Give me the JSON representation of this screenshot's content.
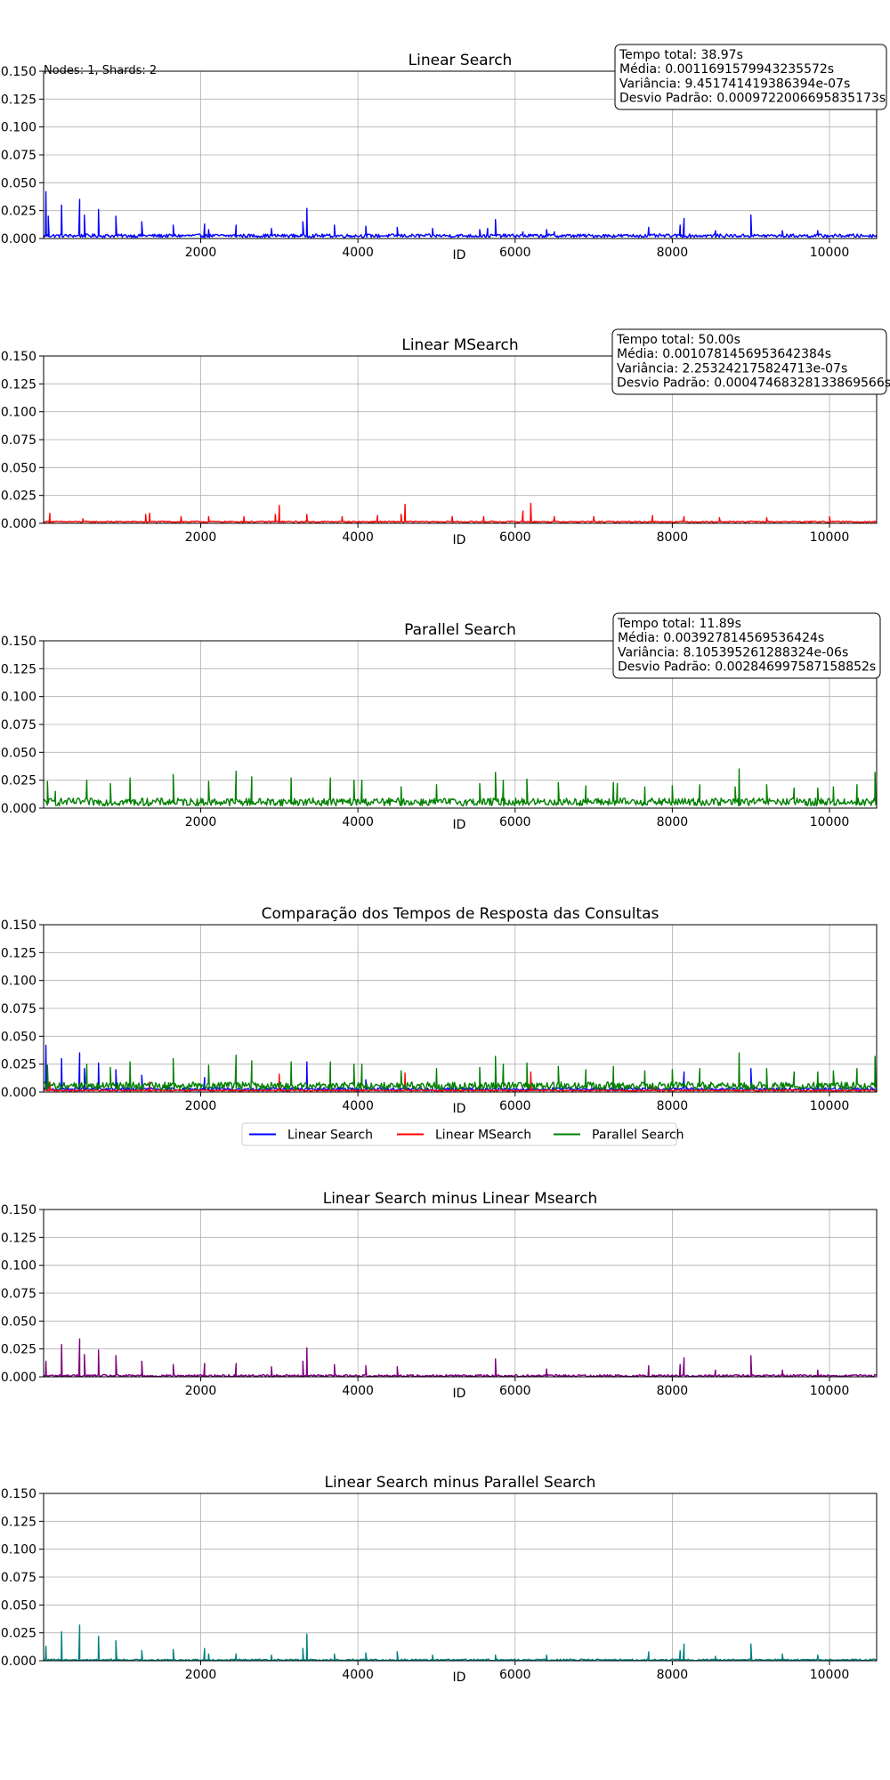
{
  "figure_note": "Nodes: 1, Shards: 2",
  "chart_data": [
    {
      "type": "line",
      "title": "Linear Search",
      "xlabel": "ID",
      "ylabel": "",
      "xlim": [
        1,
        10600
      ],
      "ylim": [
        0,
        0.15
      ],
      "xticks": [
        2000,
        4000,
        6000,
        8000,
        10000
      ],
      "yticks": [
        0.0,
        0.025,
        0.05,
        0.075,
        0.1,
        0.125,
        0.15
      ],
      "ytick_labels": [
        "0.000",
        "0.025",
        "0.050",
        "0.075",
        "0.100",
        "0.125",
        "0.150"
      ],
      "grid": true,
      "series": [
        {
          "color": "#0000ff",
          "baseline": [
            0.001,
            0.004
          ],
          "spikes": [
            [
              30,
              0.042
            ],
            [
              60,
              0.02
            ],
            [
              230,
              0.03
            ],
            [
              460,
              0.035
            ],
            [
              520,
              0.021
            ],
            [
              700,
              0.026
            ],
            [
              920,
              0.02
            ],
            [
              1250,
              0.015
            ],
            [
              1650,
              0.012
            ],
            [
              2050,
              0.013
            ],
            [
              2100,
              0.008
            ],
            [
              2450,
              0.012
            ],
            [
              2900,
              0.009
            ],
            [
              3300,
              0.015
            ],
            [
              3350,
              0.027
            ],
            [
              3700,
              0.012
            ],
            [
              4100,
              0.011
            ],
            [
              4500,
              0.01
            ],
            [
              4950,
              0.009
            ],
            [
              5550,
              0.008
            ],
            [
              5650,
              0.009
            ],
            [
              5750,
              0.017
            ],
            [
              6100,
              0.006
            ],
            [
              6400,
              0.008
            ],
            [
              6500,
              0.006
            ],
            [
              7700,
              0.01
            ],
            [
              8100,
              0.012
            ],
            [
              8150,
              0.018
            ],
            [
              8550,
              0.007
            ],
            [
              9000,
              0.021
            ],
            [
              9400,
              0.007
            ],
            [
              9850,
              0.007
            ],
            [
              10300,
              0.004
            ]
          ]
        }
      ],
      "stats": [
        "Tempo total: 38.97s",
        "Média: 0.0011691579943235572s",
        "Variância: 9.451741419386394e-07s",
        "Desvio Padrão: 0.0009722006695835173s"
      ]
    },
    {
      "type": "line",
      "title": "Linear MSearch",
      "xlabel": "ID",
      "ylabel": "",
      "xlim": [
        1,
        10600
      ],
      "ylim": [
        0,
        0.15
      ],
      "xticks": [
        2000,
        4000,
        6000,
        8000,
        10000
      ],
      "yticks": [
        0.0,
        0.025,
        0.05,
        0.075,
        0.1,
        0.125,
        0.15
      ],
      "ytick_labels": [
        "0.000",
        "0.025",
        "0.050",
        "0.075",
        "0.100",
        "0.125",
        "0.150"
      ],
      "grid": true,
      "series": [
        {
          "color": "#ff0000",
          "baseline": [
            0.0008,
            0.002
          ],
          "spikes": [
            [
              80,
              0.009
            ],
            [
              500,
              0.004
            ],
            [
              1300,
              0.008
            ],
            [
              1350,
              0.009
            ],
            [
              1750,
              0.006
            ],
            [
              2100,
              0.006
            ],
            [
              2550,
              0.006
            ],
            [
              2950,
              0.008
            ],
            [
              3000,
              0.016
            ],
            [
              3350,
              0.008
            ],
            [
              3800,
              0.006
            ],
            [
              4250,
              0.007
            ],
            [
              4550,
              0.008
            ],
            [
              4600,
              0.017
            ],
            [
              5200,
              0.006
            ],
            [
              5600,
              0.006
            ],
            [
              6100,
              0.011
            ],
            [
              6200,
              0.018
            ],
            [
              6500,
              0.006
            ],
            [
              7000,
              0.006
            ],
            [
              7750,
              0.007
            ],
            [
              8150,
              0.006
            ],
            [
              8600,
              0.005
            ],
            [
              9200,
              0.005
            ],
            [
              10000,
              0.006
            ]
          ]
        }
      ],
      "stats": [
        "Tempo total: 50.00s",
        "Média: 0.0010781456953642384s",
        "Variância: 2.253242175824713e-07s",
        "Desvio Padrão: 0.0004746832813386956​6s"
      ]
    },
    {
      "type": "line",
      "title": "Parallel Search",
      "xlabel": "ID",
      "ylabel": "",
      "xlim": [
        1,
        10600
      ],
      "ylim": [
        0,
        0.15
      ],
      "xticks": [
        2000,
        4000,
        6000,
        8000,
        10000
      ],
      "yticks": [
        0.0,
        0.025,
        0.05,
        0.075,
        0.1,
        0.125,
        0.15
      ],
      "ytick_labels": [
        "0.000",
        "0.025",
        "0.050",
        "0.075",
        "0.100",
        "0.125",
        "0.150"
      ],
      "grid": true,
      "series": [
        {
          "color": "#008000",
          "baseline": [
            0.002,
            0.009
          ],
          "spikes": [
            [
              50,
              0.024
            ],
            [
              150,
              0.015
            ],
            [
              550,
              0.025
            ],
            [
              850,
              0.022
            ],
            [
              1100,
              0.027
            ],
            [
              1650,
              0.03
            ],
            [
              2100,
              0.024
            ],
            [
              2450,
              0.033
            ],
            [
              2650,
              0.028
            ],
            [
              3150,
              0.027
            ],
            [
              3650,
              0.027
            ],
            [
              3950,
              0.025
            ],
            [
              4050,
              0.025
            ],
            [
              4550,
              0.019
            ],
            [
              5000,
              0.021
            ],
            [
              5550,
              0.022
            ],
            [
              5750,
              0.032
            ],
            [
              5850,
              0.025
            ],
            [
              6150,
              0.026
            ],
            [
              6550,
              0.023
            ],
            [
              6900,
              0.02
            ],
            [
              7250,
              0.023
            ],
            [
              7300,
              0.022
            ],
            [
              7650,
              0.019
            ],
            [
              8000,
              0.02
            ],
            [
              8350,
              0.021
            ],
            [
              8800,
              0.019
            ],
            [
              8850,
              0.035
            ],
            [
              9200,
              0.021
            ],
            [
              9550,
              0.018
            ],
            [
              9850,
              0.018
            ],
            [
              10050,
              0.019
            ],
            [
              10350,
              0.021
            ],
            [
              10580,
              0.032
            ]
          ]
        }
      ],
      "stats": [
        "Tempo total: 11.89s",
        "Média: 0.003927814569536424s",
        "Variância: 8.105395261288324e-06s",
        "Desvio Padrão: 0.002846997587158852s"
      ]
    },
    {
      "type": "line",
      "title": "Comparação dos Tempos de Resposta das Consultas",
      "xlabel": "ID",
      "ylabel": "",
      "xlim": [
        1,
        10600
      ],
      "ylim": [
        0,
        0.15
      ],
      "xticks": [
        2000,
        4000,
        6000,
        8000,
        10000
      ],
      "yticks": [
        0.0,
        0.025,
        0.05,
        0.075,
        0.1,
        0.125,
        0.15
      ],
      "ytick_labels": [
        "0.000",
        "0.025",
        "0.050",
        "0.075",
        "0.100",
        "0.125",
        "0.150"
      ],
      "grid": true,
      "legend_position": "below-center",
      "series": [
        {
          "name": "Linear Search",
          "color": "#0000ff",
          "baseline": [
            0.001,
            0.004
          ],
          "spikes": [
            [
              30,
              0.042
            ],
            [
              230,
              0.03
            ],
            [
              460,
              0.035
            ],
            [
              520,
              0.021
            ],
            [
              700,
              0.026
            ],
            [
              920,
              0.02
            ],
            [
              1250,
              0.015
            ],
            [
              2050,
              0.013
            ],
            [
              3350,
              0.027
            ],
            [
              4100,
              0.011
            ],
            [
              5750,
              0.017
            ],
            [
              8150,
              0.018
            ],
            [
              9000,
              0.021
            ],
            [
              9850,
              0.007
            ]
          ]
        },
        {
          "name": "Linear MSearch",
          "color": "#ff0000",
          "baseline": [
            0.0008,
            0.002
          ],
          "spikes": [
            [
              80,
              0.009
            ],
            [
              1350,
              0.009
            ],
            [
              3000,
              0.016
            ],
            [
              4600,
              0.017
            ],
            [
              6200,
              0.018
            ],
            [
              7750,
              0.007
            ]
          ]
        },
        {
          "name": "Parallel Search",
          "color": "#008000",
          "baseline": [
            0.002,
            0.009
          ],
          "spikes": [
            [
              50,
              0.024
            ],
            [
              550,
              0.025
            ],
            [
              850,
              0.022
            ],
            [
              1100,
              0.027
            ],
            [
              1650,
              0.03
            ],
            [
              2100,
              0.024
            ],
            [
              2450,
              0.033
            ],
            [
              2650,
              0.028
            ],
            [
              3150,
              0.027
            ],
            [
              3650,
              0.027
            ],
            [
              3950,
              0.025
            ],
            [
              4050,
              0.025
            ],
            [
              4550,
              0.019
            ],
            [
              5000,
              0.021
            ],
            [
              5550,
              0.022
            ],
            [
              5750,
              0.032
            ],
            [
              5850,
              0.025
            ],
            [
              6150,
              0.026
            ],
            [
              6550,
              0.023
            ],
            [
              6900,
              0.02
            ],
            [
              7250,
              0.023
            ],
            [
              7650,
              0.019
            ],
            [
              8000,
              0.02
            ],
            [
              8350,
              0.021
            ],
            [
              8850,
              0.035
            ],
            [
              9200,
              0.021
            ],
            [
              9550,
              0.018
            ],
            [
              9850,
              0.018
            ],
            [
              10050,
              0.019
            ],
            [
              10350,
              0.021
            ],
            [
              10580,
              0.032
            ]
          ]
        }
      ]
    },
    {
      "type": "line",
      "title": "Linear Search minus Linear Msearch",
      "xlabel": "ID",
      "ylabel": "",
      "xlim": [
        1,
        10600
      ],
      "ylim": [
        0,
        0.15
      ],
      "xticks": [
        2000,
        4000,
        6000,
        8000,
        10000
      ],
      "yticks": [
        0.0,
        0.025,
        0.05,
        0.075,
        0.1,
        0.125,
        0.15
      ],
      "ytick_labels": [
        "0.000",
        "0.025",
        "0.050",
        "0.075",
        "0.100",
        "0.125",
        "0.150"
      ],
      "grid": true,
      "series": [
        {
          "color": "#800080",
          "baseline": [
            0.0,
            0.002
          ],
          "spikes": [
            [
              30,
              0.014
            ],
            [
              230,
              0.029
            ],
            [
              460,
              0.034
            ],
            [
              520,
              0.02
            ],
            [
              700,
              0.024
            ],
            [
              920,
              0.019
            ],
            [
              1250,
              0.014
            ],
            [
              1650,
              0.011
            ],
            [
              2050,
              0.012
            ],
            [
              2450,
              0.012
            ],
            [
              2900,
              0.009
            ],
            [
              3300,
              0.014
            ],
            [
              3350,
              0.026
            ],
            [
              3700,
              0.011
            ],
            [
              4100,
              0.01
            ],
            [
              4500,
              0.009
            ],
            [
              5750,
              0.016
            ],
            [
              6400,
              0.007
            ],
            [
              7700,
              0.01
            ],
            [
              8100,
              0.011
            ],
            [
              8150,
              0.017
            ],
            [
              8550,
              0.006
            ],
            [
              9000,
              0.019
            ],
            [
              9400,
              0.006
            ],
            [
              9850,
              0.006
            ]
          ]
        }
      ]
    },
    {
      "type": "line",
      "title": "Linear Search minus Parallel Search",
      "xlabel": "ID",
      "ylabel": "",
      "xlim": [
        1,
        10600
      ],
      "ylim": [
        0,
        0.15
      ],
      "xticks": [
        2000,
        4000,
        6000,
        8000,
        10000
      ],
      "yticks": [
        0.0,
        0.025,
        0.05,
        0.075,
        0.1,
        0.125,
        0.15
      ],
      "ytick_labels": [
        "0.000",
        "0.025",
        "0.050",
        "0.075",
        "0.100",
        "0.125",
        "0.150"
      ],
      "grid": true,
      "series": [
        {
          "color": "#008080",
          "baseline": [
            0.0,
            0.0015
          ],
          "spikes": [
            [
              30,
              0.013
            ],
            [
              230,
              0.026
            ],
            [
              460,
              0.032
            ],
            [
              700,
              0.022
            ],
            [
              920,
              0.018
            ],
            [
              1250,
              0.009
            ],
            [
              1650,
              0.01
            ],
            [
              2050,
              0.011
            ],
            [
              2100,
              0.006
            ],
            [
              2450,
              0.006
            ],
            [
              2900,
              0.005
            ],
            [
              3300,
              0.011
            ],
            [
              3350,
              0.024
            ],
            [
              3700,
              0.006
            ],
            [
              4100,
              0.007
            ],
            [
              4500,
              0.008
            ],
            [
              4950,
              0.005
            ],
            [
              5750,
              0.005
            ],
            [
              6400,
              0.005
            ],
            [
              7700,
              0.008
            ],
            [
              8100,
              0.009
            ],
            [
              8150,
              0.015
            ],
            [
              8550,
              0.004
            ],
            [
              9000,
              0.015
            ],
            [
              9400,
              0.006
            ],
            [
              9850,
              0.005
            ]
          ]
        }
      ]
    }
  ]
}
